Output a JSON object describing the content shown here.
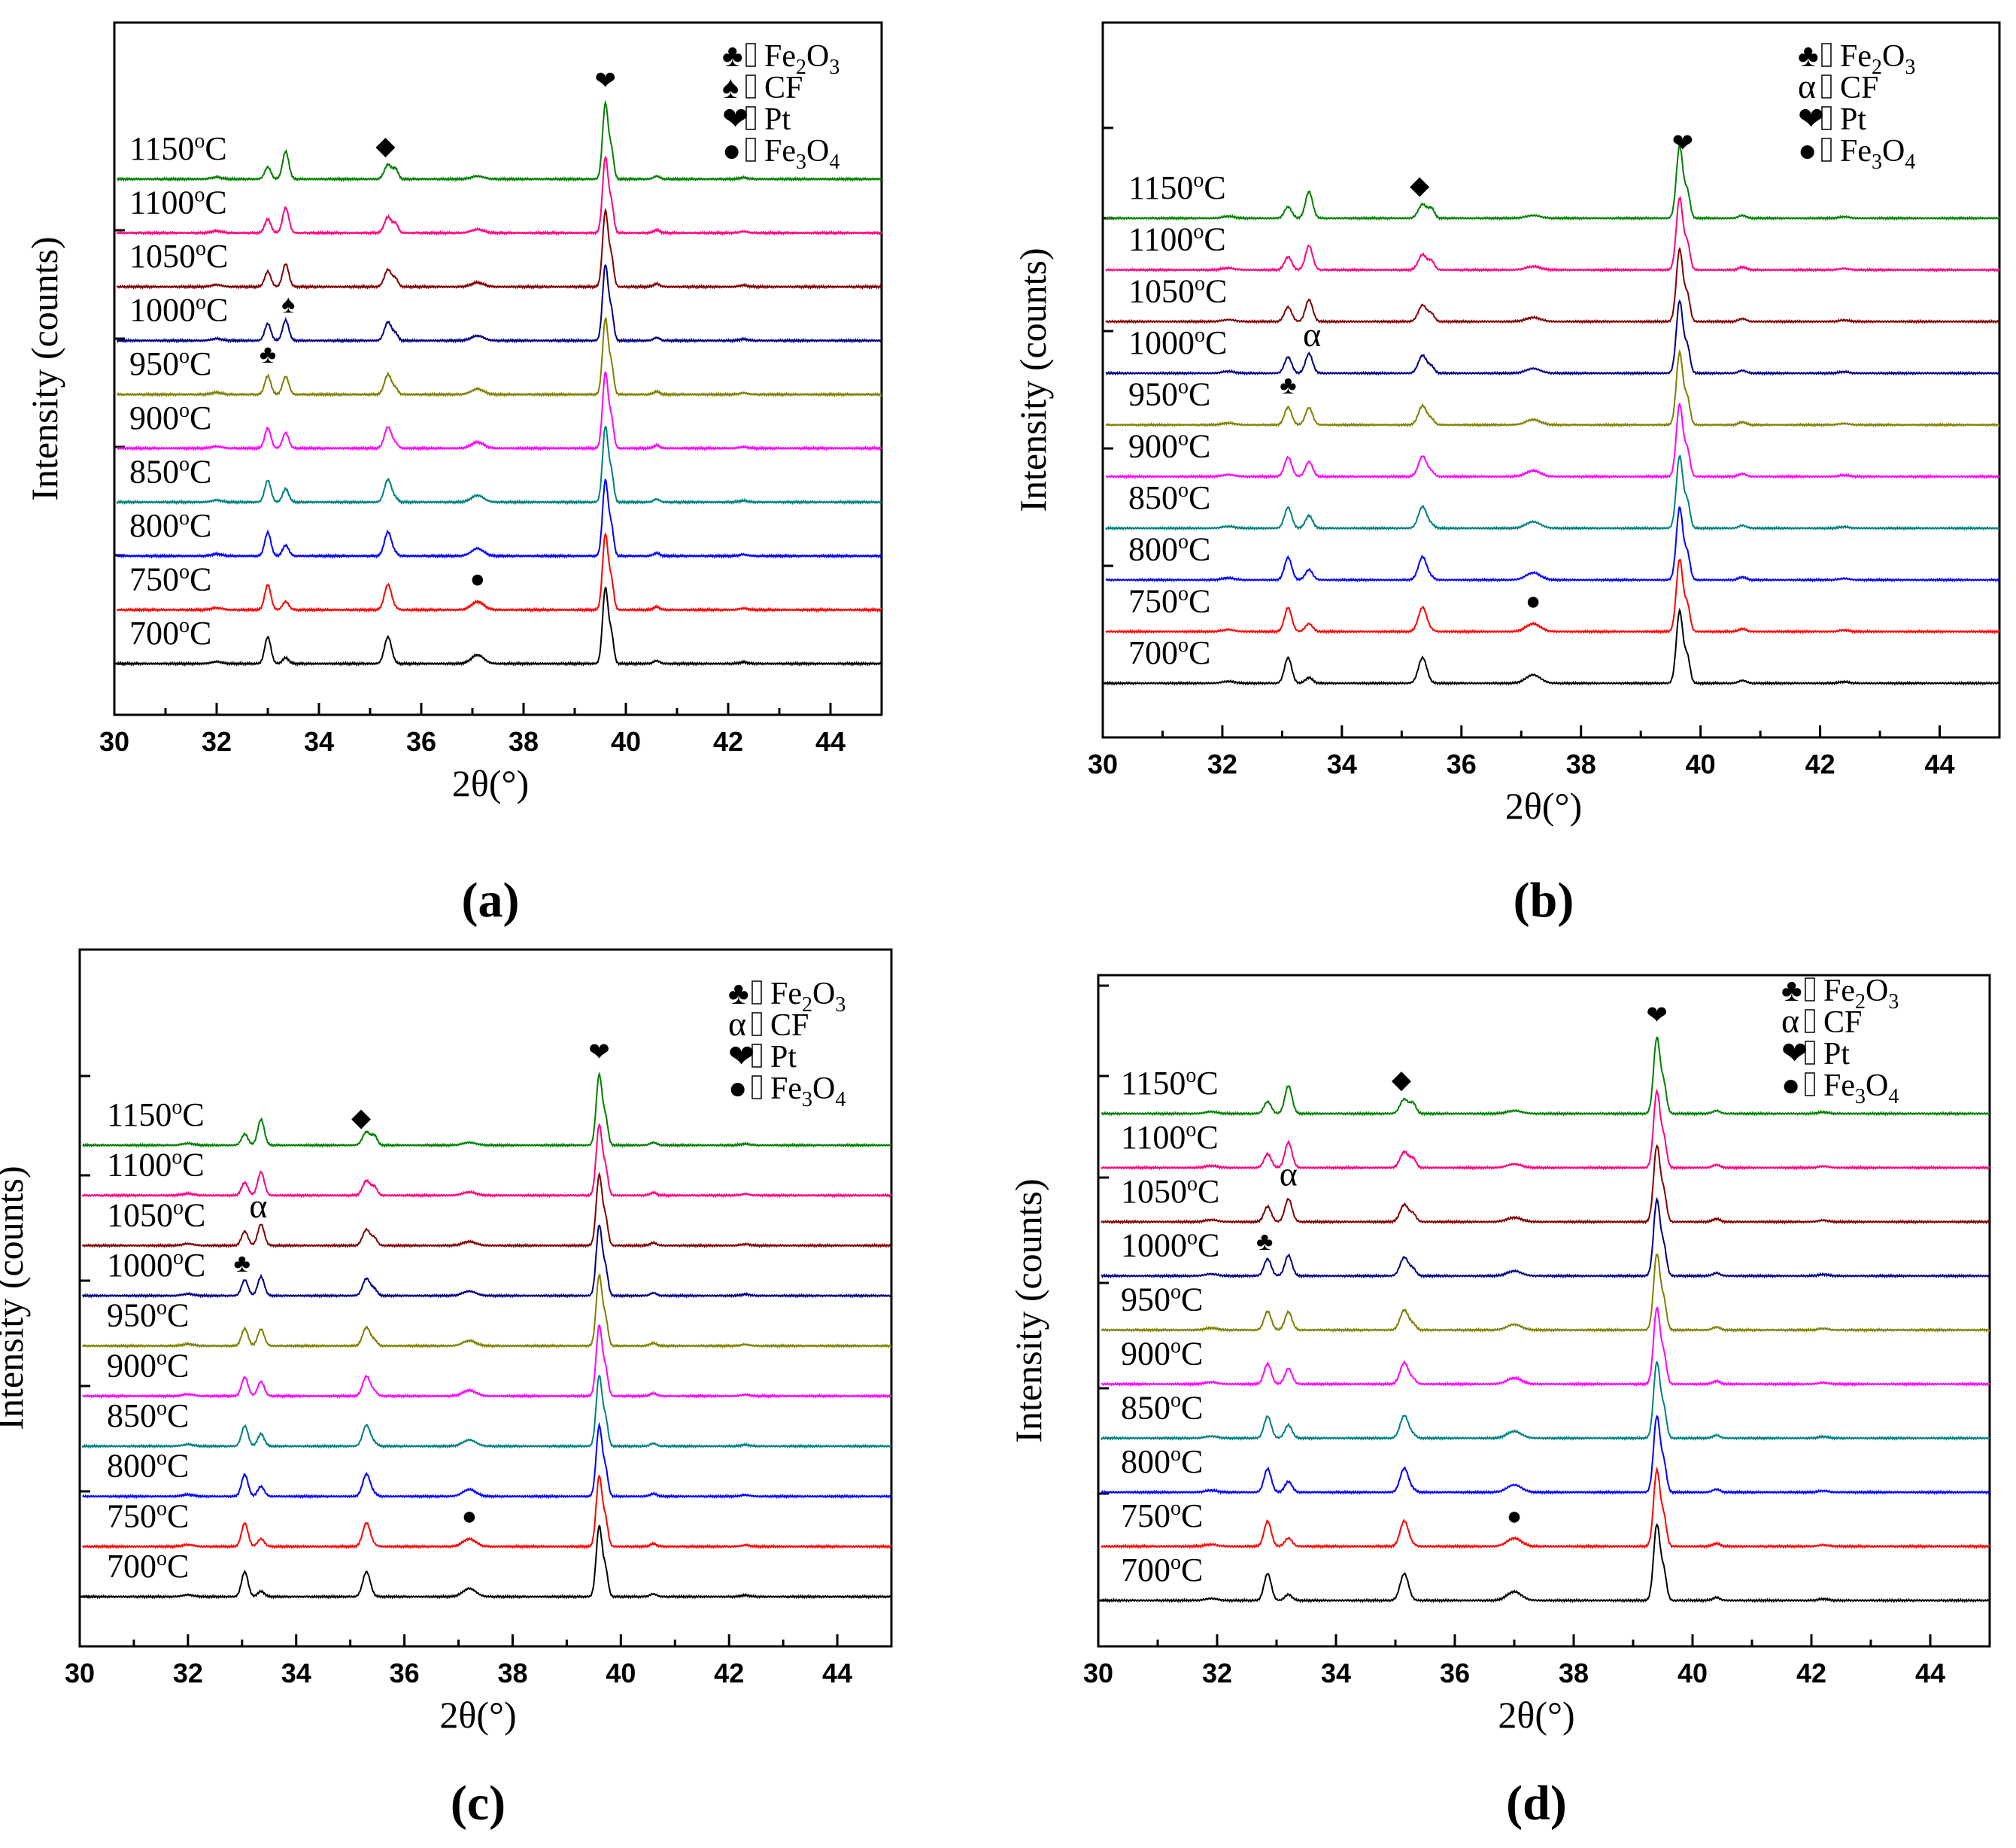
{
  "chart_data": [
    {
      "type": "line",
      "panel_label": "a",
      "xlabel": "2θ(°)",
      "ylabel": "Intensity (counts)",
      "xlim": [
        30,
        45
      ],
      "xticks": [
        "30",
        "32",
        "34",
        "36",
        "38",
        "40",
        "42",
        "44"
      ],
      "legend": [
        {
          "symbol": "♣",
          "phase": "Fe2O3",
          "sub": [
            "Fe",
            "2",
            "O",
            "3"
          ]
        },
        {
          "symbol": "♠",
          "phase": "CF",
          "sub": [
            "CF"
          ]
        },
        {
          "symbol": "❤",
          "phase": "Pt",
          "sub": [
            "Pt"
          ]
        },
        {
          "symbol": "●",
          "phase": "Fe3O4",
          "sub": [
            "Fe",
            "3",
            "O",
            "4"
          ]
        }
      ],
      "series": [
        {
          "name": "700°C",
          "temp": "700",
          "color": "#000000"
        },
        {
          "name": "750°C",
          "temp": "750",
          "color": "#ff0000"
        },
        {
          "name": "800°C",
          "temp": "800",
          "color": "#0000ff"
        },
        {
          "name": "850°C",
          "temp": "850",
          "color": "#008080"
        },
        {
          "name": "900°C",
          "temp": "900",
          "color": "#ff00ff"
        },
        {
          "name": "950°C",
          "temp": "950",
          "color": "#808000"
        },
        {
          "name": "1000°C",
          "temp": "1000",
          "color": "#000080"
        },
        {
          "name": "1050°C",
          "temp": "1050",
          "color": "#800000"
        },
        {
          "name": "1100°C",
          "temp": "1100",
          "color": "#ff0080"
        },
        {
          "name": "1150°C",
          "temp": "1150",
          "color": "#008000"
        }
      ],
      "annotations": [
        {
          "symbol": "◆",
          "x": 35.3,
          "series": "1150°C"
        },
        {
          "symbol": "❤",
          "x": 39.6,
          "series": "1150°C"
        },
        {
          "symbol": "♠",
          "x": 33.4,
          "series": "1000°C"
        },
        {
          "symbol": "♣",
          "x": 33.0,
          "series": "950°C"
        },
        {
          "symbol": "●",
          "x": 37.1,
          "series": "750°C"
        }
      ]
    },
    {
      "type": "line",
      "panel_label": "b",
      "xlabel": "2θ(°)",
      "ylabel": "Intensity (counts)",
      "xlim": [
        30,
        45
      ],
      "xticks": [
        "30",
        "32",
        "34",
        "36",
        "38",
        "40",
        "42",
        "44"
      ],
      "legend": [
        {
          "symbol": "♣",
          "phase": "Fe2O3",
          "sub": [
            "Fe",
            "2",
            "O",
            "3"
          ]
        },
        {
          "symbol": "α",
          "phase": "CF",
          "sub": [
            "CF"
          ]
        },
        {
          "symbol": "❤",
          "phase": "Pt",
          "sub": [
            "Pt"
          ]
        },
        {
          "symbol": "●",
          "phase": "Fe3O4",
          "sub": [
            "Fe",
            "3",
            "O",
            "4"
          ]
        }
      ],
      "series": [
        {
          "name": "700°C",
          "temp": "700",
          "color": "#000000"
        },
        {
          "name": "750°C",
          "temp": "750",
          "color": "#ff0000"
        },
        {
          "name": "800°C",
          "temp": "800",
          "color": "#0000ff"
        },
        {
          "name": "850°C",
          "temp": "850",
          "color": "#008080"
        },
        {
          "name": "900°C",
          "temp": "900",
          "color": "#ff00ff"
        },
        {
          "name": "950°C",
          "temp": "950",
          "color": "#808000"
        },
        {
          "name": "1000°C",
          "temp": "1000",
          "color": "#000080"
        },
        {
          "name": "1050°C",
          "temp": "1050",
          "color": "#800000"
        },
        {
          "name": "1100°C",
          "temp": "1100",
          "color": "#ff0080"
        },
        {
          "name": "1150°C",
          "temp": "1150",
          "color": "#008000"
        }
      ],
      "annotations": [
        {
          "symbol": "◆",
          "x": 35.3,
          "series": "1150°C"
        },
        {
          "symbol": "❤",
          "x": 39.7,
          "series": "1150°C"
        },
        {
          "symbol": "α",
          "x": 33.5,
          "series": "1000°C"
        },
        {
          "symbol": "♣",
          "x": 33.1,
          "series": "950°C"
        },
        {
          "symbol": "●",
          "x": 37.2,
          "series": "750°C"
        }
      ]
    },
    {
      "type": "line",
      "panel_label": "c",
      "xlabel": "2θ(°)",
      "ylabel": "Intensity (counts)",
      "xlim": [
        30,
        45
      ],
      "xticks": [
        "30",
        "32",
        "34",
        "36",
        "38",
        "40",
        "42",
        "44"
      ],
      "legend": [
        {
          "symbol": "♣",
          "phase": "Fe2O3",
          "sub": [
            "Fe",
            "2",
            "O",
            "3"
          ]
        },
        {
          "symbol": "α",
          "phase": "CF",
          "sub": [
            "CF"
          ]
        },
        {
          "symbol": "❤",
          "phase": "Pt",
          "sub": [
            "Pt"
          ]
        },
        {
          "symbol": "●",
          "phase": "Fe3O4",
          "sub": [
            "Fe",
            "3",
            "O",
            "4"
          ]
        }
      ],
      "series": [
        {
          "name": "700°C",
          "temp": "700",
          "color": "#000000"
        },
        {
          "name": "750°C",
          "temp": "750",
          "color": "#ff0000"
        },
        {
          "name": "800°C",
          "temp": "800",
          "color": "#0000ff"
        },
        {
          "name": "850°C",
          "temp": "850",
          "color": "#008080"
        },
        {
          "name": "900°C",
          "temp": "900",
          "color": "#ff00ff"
        },
        {
          "name": "950°C",
          "temp": "950",
          "color": "#808000"
        },
        {
          "name": "1000°C",
          "temp": "1000",
          "color": "#000080"
        },
        {
          "name": "1050°C",
          "temp": "1050",
          "color": "#800000"
        },
        {
          "name": "1100°C",
          "temp": "1100",
          "color": "#ff0080"
        },
        {
          "name": "1150°C",
          "temp": "1150",
          "color": "#008000"
        }
      ],
      "annotations": [
        {
          "symbol": "◆",
          "x": 35.2,
          "series": "1150°C"
        },
        {
          "symbol": "❤",
          "x": 39.6,
          "series": "1150°C"
        },
        {
          "symbol": "α",
          "x": 33.3,
          "series": "1050°C"
        },
        {
          "symbol": "♣",
          "x": 33.0,
          "series": "1000°C"
        },
        {
          "symbol": "●",
          "x": 37.2,
          "series": "750°C"
        }
      ]
    },
    {
      "type": "line",
      "panel_label": "d",
      "xlabel": "2θ(°)",
      "ylabel": "Intensity (counts)",
      "xlim": [
        30,
        45
      ],
      "xticks": [
        "30",
        "32",
        "34",
        "36",
        "38",
        "40",
        "42",
        "44"
      ],
      "legend": [
        {
          "symbol": "♣",
          "phase": "Fe2O3",
          "sub": [
            "Fe",
            "2",
            "O",
            "3"
          ]
        },
        {
          "symbol": "α",
          "phase": "CF",
          "sub": [
            "CF"
          ]
        },
        {
          "symbol": "❤",
          "phase": "Pt",
          "sub": [
            "Pt"
          ]
        },
        {
          "symbol": "●",
          "phase": "Fe3O4",
          "sub": [
            "Fe",
            "3",
            "O",
            "4"
          ]
        }
      ],
      "series": [
        {
          "name": "700°C",
          "temp": "700",
          "color": "#000000"
        },
        {
          "name": "750°C",
          "temp": "750",
          "color": "#ff0000"
        },
        {
          "name": "800°C",
          "temp": "800",
          "color": "#0000ff"
        },
        {
          "name": "850°C",
          "temp": "850",
          "color": "#008080"
        },
        {
          "name": "900°C",
          "temp": "900",
          "color": "#ff00ff"
        },
        {
          "name": "950°C",
          "temp": "950",
          "color": "#808000"
        },
        {
          "name": "1000°C",
          "temp": "1000",
          "color": "#000080"
        },
        {
          "name": "1050°C",
          "temp": "1050",
          "color": "#800000"
        },
        {
          "name": "1100°C",
          "temp": "1100",
          "color": "#ff0080"
        },
        {
          "name": "1150°C",
          "temp": "1150",
          "color": "#008000"
        }
      ],
      "annotations": [
        {
          "symbol": "◆",
          "x": 35.1,
          "series": "1150°C"
        },
        {
          "symbol": "❤",
          "x": 39.4,
          "series": "1150°C"
        },
        {
          "symbol": "α",
          "x": 33.2,
          "series": "1050°C"
        },
        {
          "symbol": "♣",
          "x": 32.8,
          "series": "1000°C"
        },
        {
          "symbol": "●",
          "x": 37.0,
          "series": "750°C"
        }
      ]
    }
  ]
}
